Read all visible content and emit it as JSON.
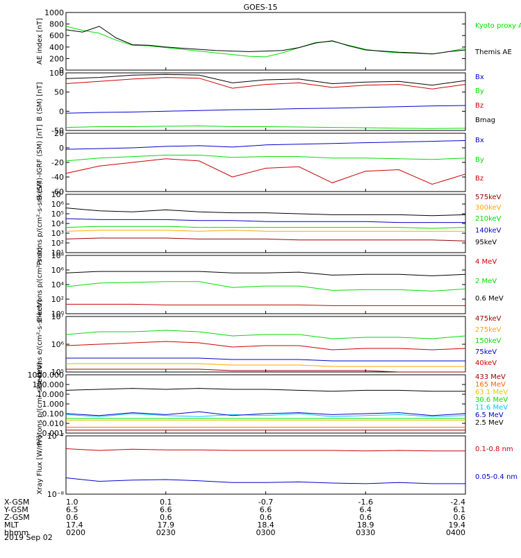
{
  "title": "GOES-15",
  "date": "2019 Sep 02",
  "colors": {
    "black": "#000000",
    "red": "#cc0000",
    "green": "#00dd00",
    "blue": "#0000cc",
    "orange": "#ffa500",
    "cyan": "#00c8ff",
    "magenta": "#cc00cc",
    "darkred": "#990000",
    "gold": "#e6c800",
    "lime": "#00e600"
  },
  "x_axis": {
    "rows": [
      {
        "label": "X-GSM",
        "values": [
          "1.0",
          "0.1",
          "-0.7",
          "-1.6",
          "-2.4"
        ]
      },
      {
        "label": "Y-GSM",
        "values": [
          "6.5",
          "6.6",
          "6.6",
          "6.4",
          "6.1"
        ]
      },
      {
        "label": "Z-GSM",
        "values": [
          "0.6",
          "0.6",
          "0.6",
          "0.6",
          "0.6"
        ]
      },
      {
        "label": "MLT",
        "values": [
          "17.4",
          "17.9",
          "18.4",
          "18.9",
          "19.4"
        ]
      },
      {
        "label": "hhmm",
        "values": [
          "0200",
          "0230",
          "0300",
          "0330",
          "0400"
        ]
      }
    ]
  },
  "chart_data": [
    {
      "type": "line",
      "ylabel": "AE index [nT]",
      "ylim": [
        0,
        1000
      ],
      "scale": "linear",
      "yticks": [
        "0",
        "200",
        "400",
        "600",
        "800",
        "1000"
      ],
      "x": [
        0,
        5,
        10,
        15,
        20,
        25,
        30,
        35,
        40,
        45,
        50,
        55,
        60,
        65,
        70,
        75,
        80,
        85,
        90,
        95,
        100,
        105,
        110,
        115,
        120
      ],
      "series": [
        {
          "name": "Kyoto proxy AE",
          "color": "#00dd00",
          "values": [
            760,
            690,
            640,
            520,
            430,
            420,
            390,
            360,
            330,
            300,
            270,
            240,
            230,
            300,
            390,
            480,
            500,
            430,
            360,
            320,
            300,
            290,
            280,
            320,
            380
          ]
        },
        {
          "name": "Themis AE",
          "color": "#000000",
          "values": [
            700,
            660,
            760,
            560,
            440,
            430,
            400,
            380,
            360,
            340,
            330,
            320,
            330,
            340,
            390,
            470,
            510,
            420,
            350,
            330,
            310,
            300,
            280,
            320,
            350
          ]
        }
      ]
    },
    {
      "type": "line",
      "ylabel": "B (SM) [nT]",
      "ylim": [
        -50,
        100
      ],
      "scale": "linear",
      "yticks": [
        "-50",
        "0",
        "50",
        "100"
      ],
      "x": [
        0,
        10,
        20,
        30,
        40,
        50,
        60,
        70,
        80,
        90,
        100,
        110,
        120
      ],
      "series": [
        {
          "name": "Bx",
          "color": "#0000cc",
          "values": [
            -5,
            -3,
            -2,
            0,
            2,
            4,
            5,
            7,
            8,
            10,
            12,
            14,
            15
          ]
        },
        {
          "name": "By",
          "color": "#00dd00",
          "values": [
            -42,
            -40,
            -40,
            -39,
            -38,
            -40,
            -40,
            -41,
            -42,
            -43,
            -44,
            -45,
            -44
          ]
        },
        {
          "name": "Bz",
          "color": "#cc0000",
          "values": [
            72,
            78,
            84,
            88,
            86,
            60,
            70,
            74,
            62,
            68,
            70,
            58,
            70
          ]
        },
        {
          "name": "Bmag",
          "color": "#000000",
          "values": [
            85,
            88,
            94,
            96,
            94,
            74,
            82,
            84,
            72,
            76,
            78,
            68,
            80
          ]
        }
      ]
    },
    {
      "type": "line",
      "ylabel": "B (SM)-IGRF (SM) [nT]",
      "ylim": [
        -60,
        20
      ],
      "scale": "linear",
      "yticks": [
        "-60",
        "-40",
        "-20",
        "0",
        "20"
      ],
      "x": [
        0,
        10,
        20,
        30,
        40,
        50,
        60,
        70,
        80,
        90,
        100,
        110,
        120
      ],
      "series": [
        {
          "name": "Bx",
          "color": "#0000cc",
          "values": [
            -2,
            -1,
            0,
            2,
            3,
            1,
            4,
            5,
            6,
            7,
            8,
            9,
            10
          ]
        },
        {
          "name": "By",
          "color": "#00dd00",
          "values": [
            -18,
            -14,
            -12,
            -10,
            -10,
            -13,
            -12,
            -12,
            -14,
            -14,
            -15,
            -16,
            -14
          ]
        },
        {
          "name": "Bz",
          "color": "#cc0000",
          "values": [
            -35,
            -25,
            -20,
            -15,
            -18,
            -40,
            -28,
            -26,
            -48,
            -32,
            -30,
            -50,
            -36
          ]
        }
      ]
    },
    {
      "type": "line",
      "ylabel": "Protons p/(cm²-s-sr-keV)",
      "ylim": [
        1,
        7
      ],
      "scale": "log",
      "yticks": [
        "10¹",
        "10²",
        "10³",
        "10⁴",
        "10⁵",
        "10⁶",
        "10⁷"
      ],
      "x": [
        0,
        10,
        20,
        30,
        40,
        50,
        60,
        70,
        80,
        90,
        100,
        110,
        120
      ],
      "series": [
        {
          "name": "575keV",
          "color": "#990000",
          "values": [
            2.4,
            2.5,
            2.5,
            2.5,
            2.4,
            2.4,
            2.4,
            2.3,
            2.3,
            2.3,
            2.3,
            2.3,
            2.2
          ]
        },
        {
          "name": "300keV",
          "color": "#ffa500",
          "values": [
            3.2,
            3.3,
            3.3,
            3.3,
            3.2,
            3.3,
            3.2,
            3.2,
            3.2,
            3.2,
            3.2,
            3.2,
            3.2
          ]
        },
        {
          "name": "210keV",
          "color": "#00dd00",
          "values": [
            3.6,
            3.7,
            3.7,
            3.7,
            3.6,
            3.6,
            3.6,
            3.6,
            3.6,
            3.6,
            3.6,
            3.5,
            3.6
          ]
        },
        {
          "name": "140keV",
          "color": "#0000cc",
          "values": [
            4.5,
            4.4,
            4.4,
            4.4,
            4.3,
            4.3,
            4.2,
            4.2,
            4.2,
            4.2,
            4.1,
            4.1,
            4.1
          ]
        },
        {
          "name": "95keV",
          "color": "#000000",
          "values": [
            5.6,
            5.3,
            5.2,
            5.4,
            5.2,
            5.1,
            5.1,
            5.0,
            4.9,
            4.9,
            4.9,
            4.8,
            4.9
          ]
        }
      ]
    },
    {
      "type": "line",
      "ylabel": "Electrons p/(cm²-s-sr)",
      "ylim": [
        0,
        8
      ],
      "scale": "log",
      "yticks": [
        "10⁰",
        "10²",
        "10⁴",
        "10⁶",
        "10⁸"
      ],
      "x": [
        0,
        10,
        20,
        30,
        40,
        50,
        60,
        70,
        80,
        90,
        100,
        110,
        120
      ],
      "series": [
        {
          "name": "4 MeV",
          "color": "#cc0000",
          "values": [
            1.3,
            1.3,
            1.3,
            1.2,
            1.2,
            1.2,
            1.2,
            1.2,
            1.1,
            1.1,
            1.1,
            1.1,
            1.1
          ]
        },
        {
          "name": "2 MeV",
          "color": "#00dd00",
          "values": [
            3.7,
            4.2,
            4.3,
            4.4,
            4.4,
            3.6,
            3.8,
            3.8,
            3.2,
            3.3,
            3.3,
            3.1,
            3.4
          ]
        },
        {
          "name": "0.6 MeV",
          "color": "#000000",
          "values": [
            5.6,
            5.8,
            5.8,
            5.8,
            5.8,
            5.6,
            5.6,
            5.7,
            5.3,
            5.4,
            5.4,
            5.2,
            5.4
          ]
        }
      ]
    },
    {
      "type": "line",
      "ylabel": "Electrons e/(cm²-s-sr-keV)",
      "ylim": [
        3,
        7
      ],
      "scale": "log",
      "yticks": [
        "10⁵",
        "10⁶",
        "10⁷"
      ],
      "x": [
        0,
        10,
        20,
        30,
        40,
        50,
        60,
        70,
        80,
        90,
        100,
        110,
        120
      ],
      "series": [
        {
          "name": "475keV",
          "color": "#990000",
          "values": [
            3.2,
            3.2,
            3.2,
            3.2,
            3.2,
            3.1,
            3.1,
            3.1,
            3.1,
            3.1,
            3.0,
            3.0,
            3.0
          ]
        },
        {
          "name": "275keV",
          "color": "#ffa500",
          "values": [
            3.6,
            3.6,
            3.6,
            3.6,
            3.6,
            3.5,
            3.5,
            3.5,
            3.4,
            3.4,
            3.4,
            3.4,
            3.4
          ]
        },
        {
          "name": "150keV",
          "color": "#00dd00",
          "values": [
            5.7,
            5.9,
            5.9,
            6.0,
            5.9,
            5.6,
            5.7,
            5.7,
            5.4,
            5.5,
            5.5,
            5.4,
            5.6
          ]
        },
        {
          "name": "75keV",
          "color": "#0000cc",
          "values": [
            4.0,
            4.0,
            4.0,
            4.0,
            4.0,
            3.9,
            3.9,
            3.9,
            3.8,
            3.8,
            3.8,
            3.8,
            3.8
          ]
        },
        {
          "name": "40keV",
          "color": "#cc0000",
          "values": [
            4.9,
            5.0,
            5.1,
            5.2,
            5.1,
            4.8,
            4.9,
            4.9,
            4.6,
            4.7,
            4.7,
            4.6,
            4.7
          ]
        }
      ]
    },
    {
      "type": "line",
      "ylabel": "Protons p/(cm²-s-sr-keV)",
      "ylim": [
        -3,
        3
      ],
      "scale": "log",
      "yticks": [
        "0.001",
        "0.010",
        "0.100",
        "1.000",
        "10.000",
        "100.000",
        "1000.000"
      ],
      "x": [
        0,
        10,
        20,
        30,
        40,
        50,
        60,
        70,
        80,
        90,
        100,
        110,
        120
      ],
      "series": [
        {
          "name": "433 MeV",
          "color": "#990000",
          "values": [
            -2.7,
            -2.7,
            -2.7,
            -2.7,
            -2.7,
            -2.7,
            -2.7,
            -2.7,
            -2.7,
            -2.7,
            -2.7,
            -2.7,
            -2.7
          ]
        },
        {
          "name": "165 MeV",
          "color": "#ff6600",
          "values": [
            -2.4,
            -2.4,
            -2.4,
            -2.4,
            -2.4,
            -2.4,
            -2.4,
            -2.4,
            -2.4,
            -2.4,
            -2.4,
            -2.4,
            -2.4
          ]
        },
        {
          "name": "63.1 MeV",
          "color": "#e6c800",
          "values": [
            -1.7,
            -1.7,
            -1.7,
            -1.7,
            -1.7,
            -1.7,
            -1.7,
            -1.7,
            -1.7,
            -1.7,
            -1.7,
            -1.7,
            -1.7
          ]
        },
        {
          "name": "30.6 MeV",
          "color": "#00dd00",
          "values": [
            -1.5,
            -1.5,
            -1.5,
            -1.5,
            -1.5,
            -1.5,
            -1.5,
            -1.5,
            -1.5,
            -1.5,
            -1.5,
            -1.5,
            -1.5
          ]
        },
        {
          "name": "11.6 MeV",
          "color": "#00c8ff",
          "values": [
            -1.1,
            -1.3,
            -1.0,
            -1.2,
            -1.3,
            -1.1,
            -1.2,
            -1.0,
            -1.3,
            -1.2,
            -1.1,
            -1.3,
            -1.2
          ]
        },
        {
          "name": "6.5 MeV",
          "color": "#0000cc",
          "values": [
            -1.0,
            -1.2,
            -0.9,
            -1.1,
            -0.8,
            -1.2,
            -1.0,
            -0.9,
            -1.1,
            -1.0,
            -0.9,
            -1.2,
            -1.0
          ]
        },
        {
          "name": "2.5 MeV",
          "color": "#000000",
          "values": [
            1.4,
            1.5,
            1.6,
            1.5,
            1.6,
            1.5,
            1.5,
            1.4,
            1.3,
            1.4,
            1.4,
            1.3,
            1.3
          ]
        }
      ]
    },
    {
      "type": "line",
      "ylabel": "Xray Flux [W/m²]",
      "ylim": [
        -8,
        -7
      ],
      "scale": "log",
      "yticks": [
        "10⁻⁸",
        "10⁻⁷"
      ],
      "x": [
        0,
        10,
        20,
        30,
        40,
        50,
        60,
        70,
        80,
        90,
        100,
        110,
        120
      ],
      "series": [
        {
          "name": "0.1-0.8 nm",
          "color": "#cc0000",
          "values": [
            -7.22,
            -7.25,
            -7.23,
            -7.24,
            -7.24,
            -7.25,
            -7.25,
            -7.25,
            -7.25,
            -7.26,
            -7.25,
            -7.26,
            -7.26
          ]
        },
        {
          "name": "0.05-0.4 nm",
          "color": "#0000cc",
          "values": [
            -7.72,
            -7.78,
            -7.76,
            -7.75,
            -7.77,
            -7.8,
            -7.8,
            -7.79,
            -7.81,
            -7.82,
            -7.8,
            -7.82,
            -7.82
          ]
        }
      ]
    }
  ]
}
